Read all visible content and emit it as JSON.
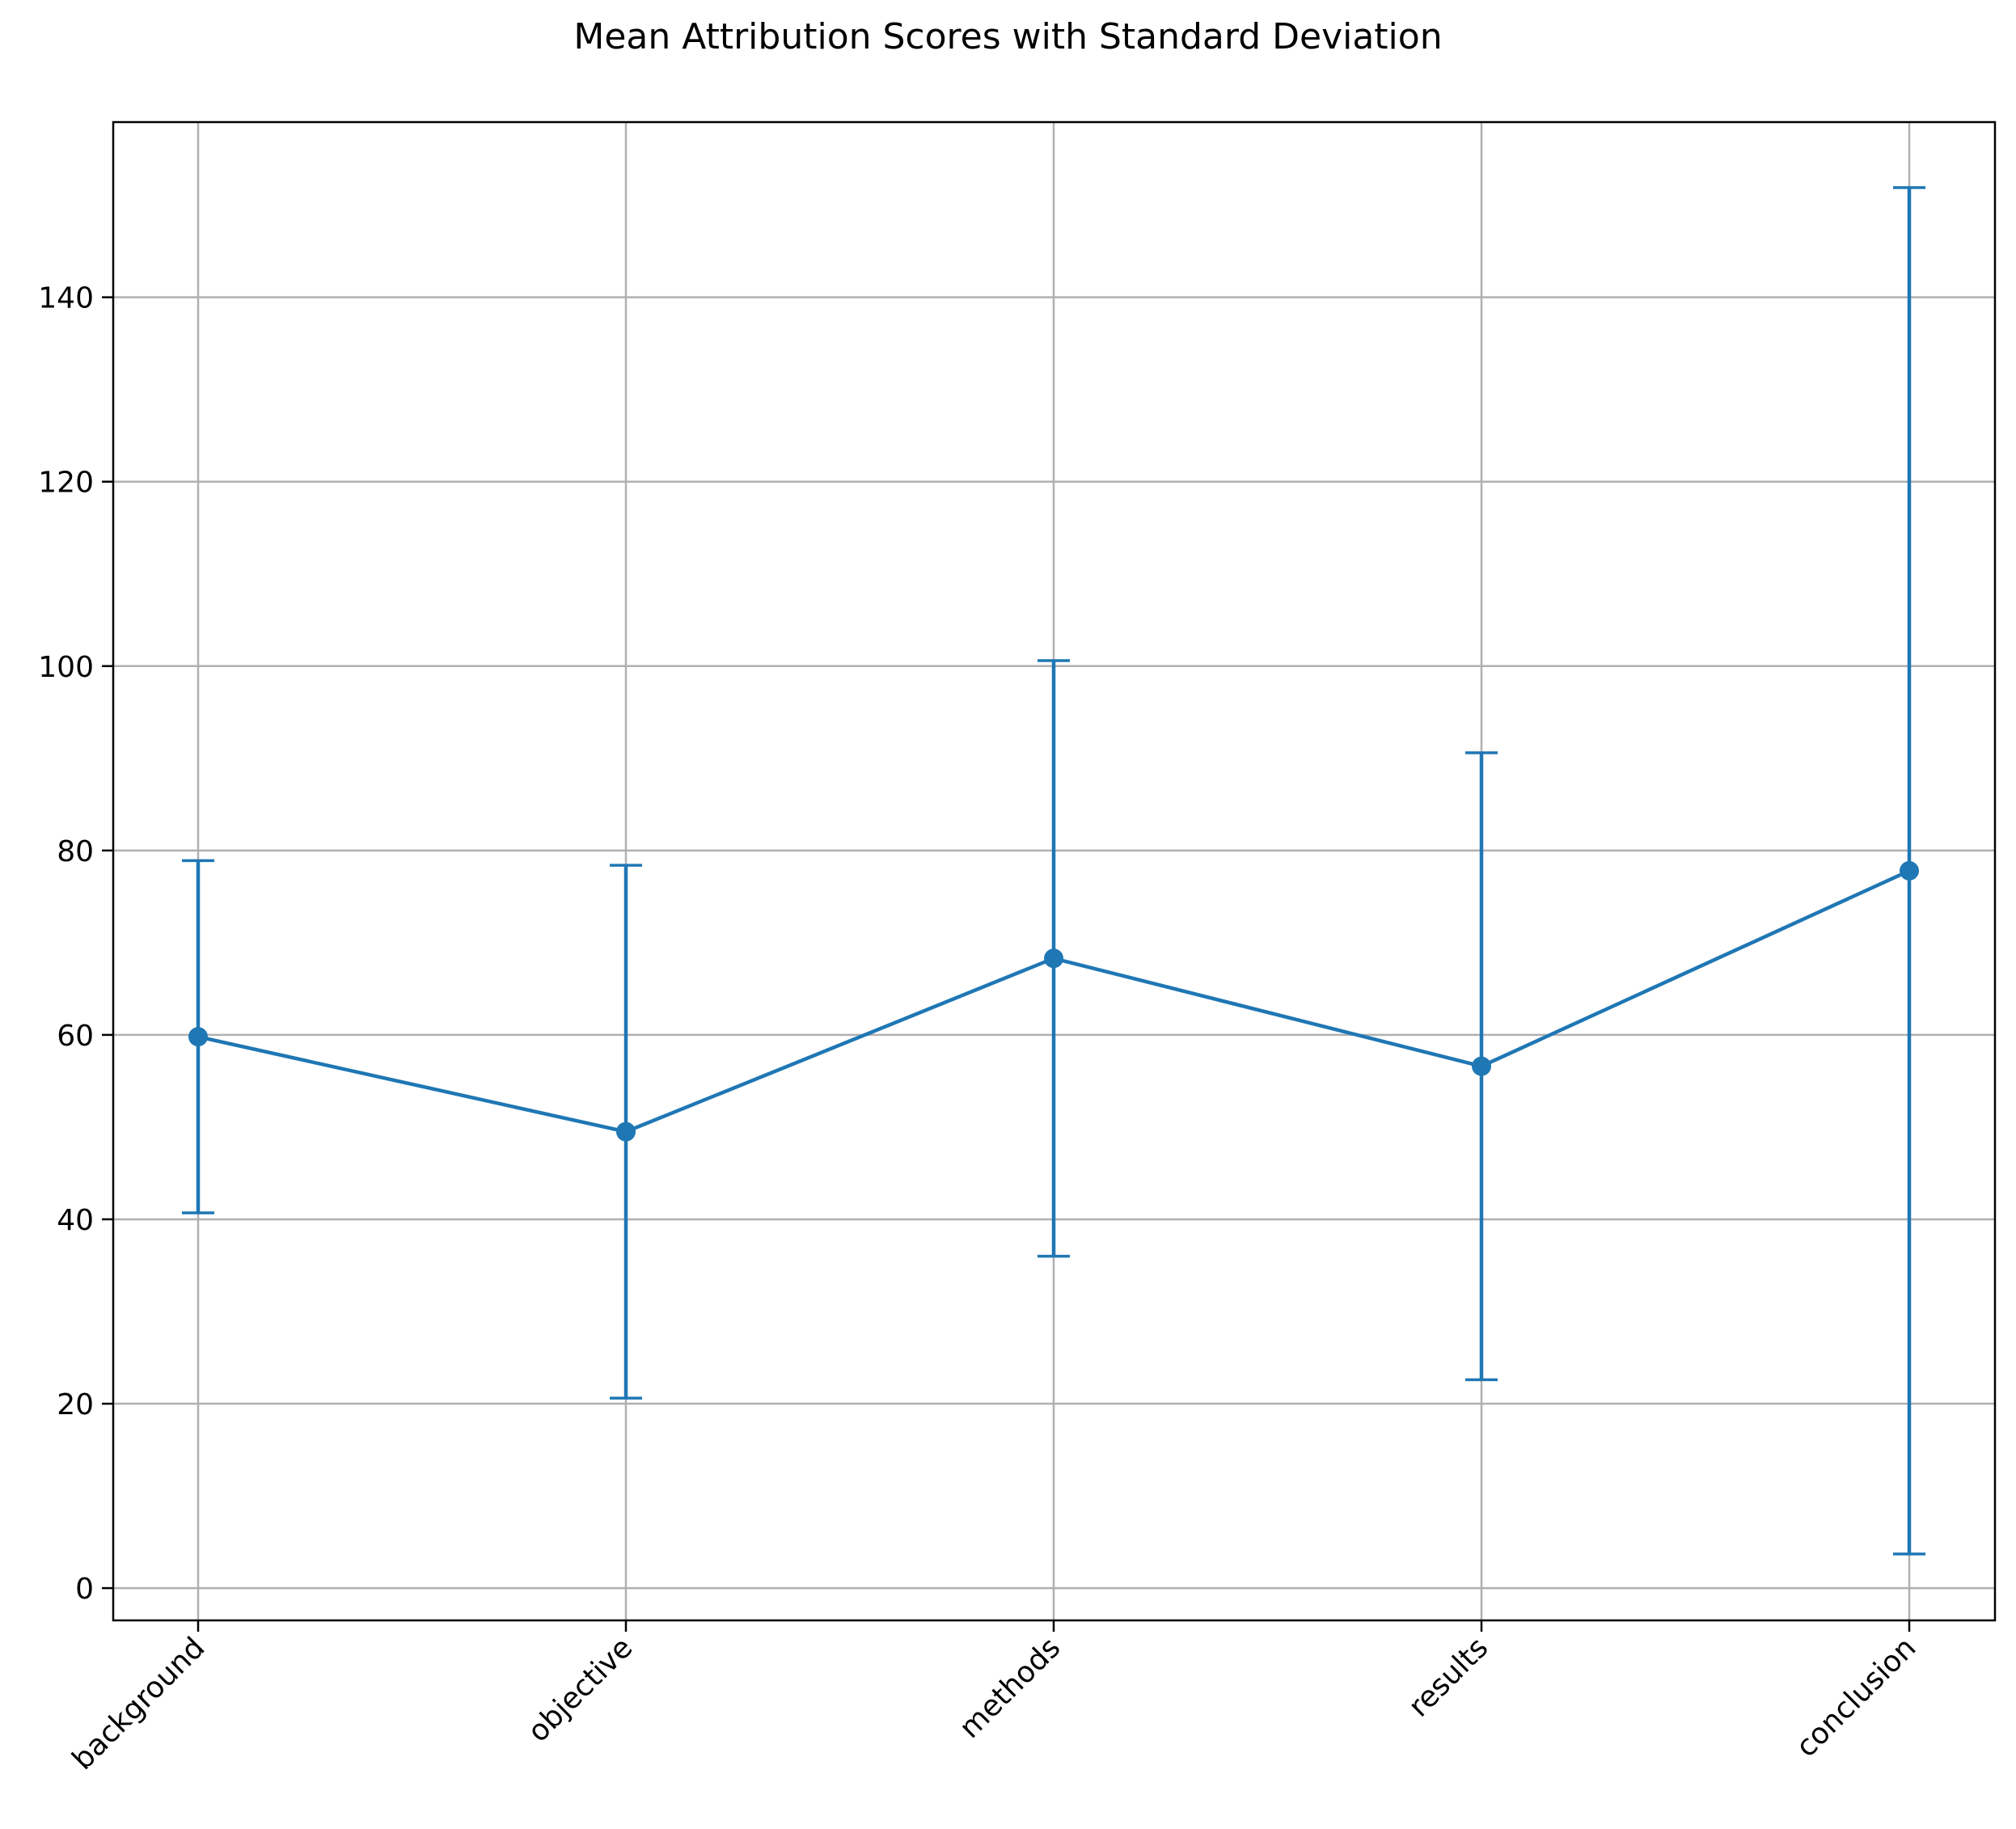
{
  "chart_data": {
    "type": "line",
    "title": "Mean Attribution Scores with Standard Deviation",
    "xlabel": "",
    "ylabel": "",
    "categories": [
      "background",
      "objective",
      "methods",
      "results",
      "conclusion"
    ],
    "series": [
      {
        "values": [
          59.8,
          49.5,
          68.3,
          56.6,
          77.8
        ],
        "error": [
          19.1,
          28.9,
          32.3,
          34.0,
          74.1
        ]
      }
    ],
    "ylim": [
      -3.5,
      159
    ],
    "yticks": [
      0,
      20,
      40,
      60,
      80,
      100,
      120,
      140
    ],
    "grid": true,
    "line_color": "#1f77b4",
    "grid_color": "#b0b0b0"
  }
}
